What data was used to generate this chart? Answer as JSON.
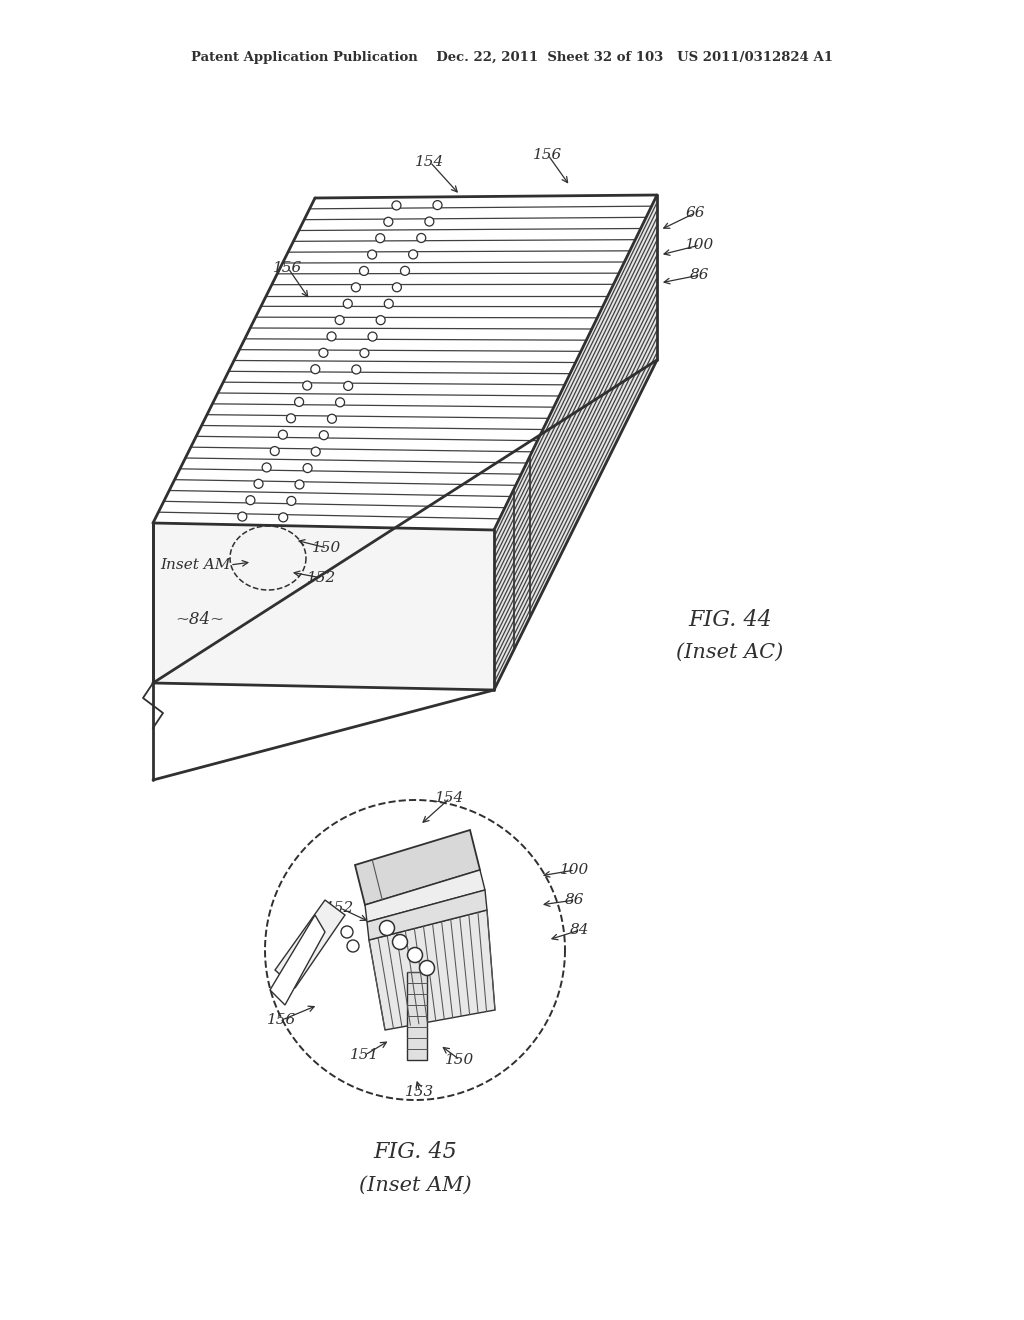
{
  "bg_color": "#ffffff",
  "header_text": "Patent Application Publication    Dec. 22, 2011  Sheet 32 of 103   US 2011/0312824 A1",
  "line_color": "#303030",
  "fig44_caption": "FIG. 44",
  "fig44_sub": "(Inset AC)",
  "fig45_caption": "FIG. 45",
  "fig45_sub": "(Inset AM)"
}
